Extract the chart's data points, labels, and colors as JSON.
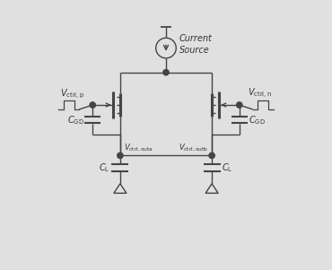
{
  "bg_color": "#e0e0e0",
  "line_color": "#444444",
  "text_color": "#333333",
  "fig_width": 3.7,
  "fig_height": 3.01,
  "dpi": 100
}
